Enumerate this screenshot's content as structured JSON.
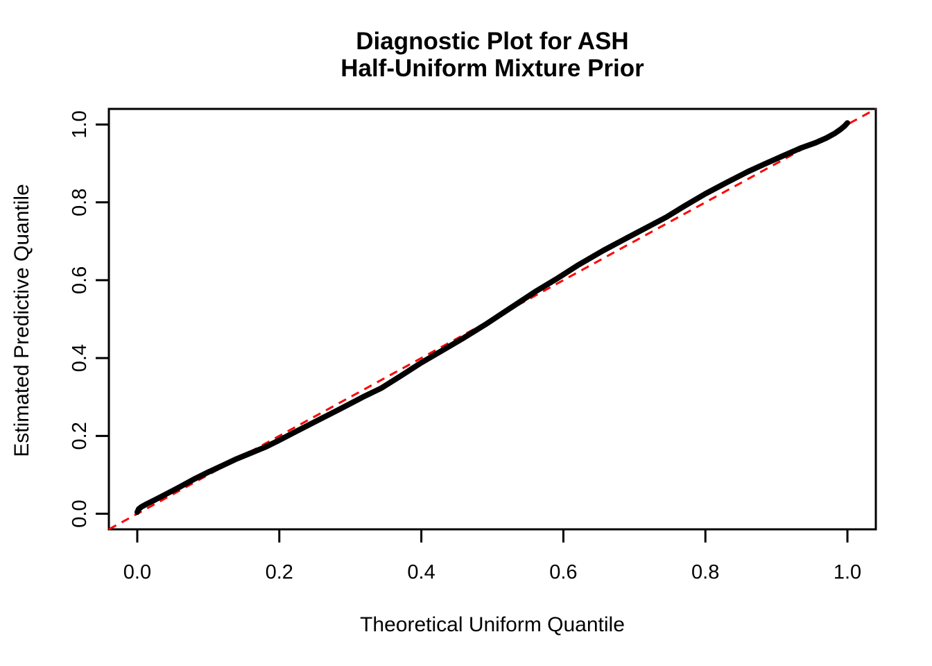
{
  "title": {
    "line1": "Diagnostic Plot for ASH",
    "line2": "Half-Uniform Mixture Prior"
  },
  "axes": {
    "x": {
      "label": "Theoretical Uniform Quantile",
      "tick_labels": [
        "0.0",
        "0.2",
        "0.4",
        "0.6",
        "0.8",
        "1.0"
      ],
      "tick_values": [
        0.0,
        0.2,
        0.4,
        0.6,
        0.8,
        1.0
      ],
      "range": [
        -0.04,
        1.04
      ]
    },
    "y": {
      "label": "Estimated Predictive Quantile",
      "tick_labels": [
        "0.0",
        "0.2",
        "0.4",
        "0.6",
        "0.8",
        "1.0"
      ],
      "tick_values": [
        0.0,
        0.2,
        0.4,
        0.6,
        0.8,
        1.0
      ],
      "range": [
        -0.04,
        1.04
      ]
    }
  },
  "colors": {
    "curve": "#000000",
    "reference": "#FF0000",
    "background": "#FFFFFF",
    "text": "#000000",
    "box": "#000000"
  },
  "chart_data": {
    "type": "line",
    "title": "Diagnostic Plot for ASH Half-Uniform Mixture Prior",
    "xlabel": "Theoretical Uniform Quantile",
    "ylabel": "Estimated Predictive Quantile",
    "xlim": [
      -0.04,
      1.04
    ],
    "ylim": [
      -0.04,
      1.04
    ],
    "grid": false,
    "legend": null,
    "series": [
      {
        "name": "estimated-predictive-quantiles",
        "color": "#000000",
        "style": "solid",
        "line_width": 8,
        "points": [
          [
            0.0,
            0.004
          ],
          [
            0.002,
            0.012
          ],
          [
            0.006,
            0.018
          ],
          [
            0.012,
            0.024
          ],
          [
            0.025,
            0.036
          ],
          [
            0.04,
            0.05
          ],
          [
            0.06,
            0.069
          ],
          [
            0.08,
            0.089
          ],
          [
            0.1,
            0.107
          ],
          [
            0.12,
            0.124
          ],
          [
            0.14,
            0.141
          ],
          [
            0.16,
            0.156
          ],
          [
            0.18,
            0.171
          ],
          [
            0.2,
            0.189
          ],
          [
            0.22,
            0.208
          ],
          [
            0.25,
            0.236
          ],
          [
            0.28,
            0.264
          ],
          [
            0.3,
            0.283
          ],
          [
            0.32,
            0.302
          ],
          [
            0.344,
            0.323
          ],
          [
            0.37,
            0.353
          ],
          [
            0.4,
            0.388
          ],
          [
            0.43,
            0.42
          ],
          [
            0.46,
            0.452
          ],
          [
            0.49,
            0.486
          ],
          [
            0.51,
            0.51
          ],
          [
            0.535,
            0.54
          ],
          [
            0.56,
            0.57
          ],
          [
            0.59,
            0.603
          ],
          [
            0.62,
            0.638
          ],
          [
            0.656,
            0.676
          ],
          [
            0.69,
            0.709
          ],
          [
            0.72,
            0.738
          ],
          [
            0.745,
            0.762
          ],
          [
            0.77,
            0.79
          ],
          [
            0.8,
            0.822
          ],
          [
            0.83,
            0.851
          ],
          [
            0.86,
            0.879
          ],
          [
            0.885,
            0.9
          ],
          [
            0.91,
            0.92
          ],
          [
            0.935,
            0.94
          ],
          [
            0.955,
            0.953
          ],
          [
            0.97,
            0.965
          ],
          [
            0.982,
            0.977
          ],
          [
            0.99,
            0.987
          ],
          [
            0.996,
            0.996
          ],
          [
            1.0,
            1.004
          ]
        ]
      },
      {
        "name": "reference-diagonal",
        "color": "#FF0000",
        "style": "dashed",
        "line_width": 3,
        "points": [
          [
            -0.04,
            -0.04
          ],
          [
            1.04,
            1.04
          ]
        ]
      }
    ]
  }
}
